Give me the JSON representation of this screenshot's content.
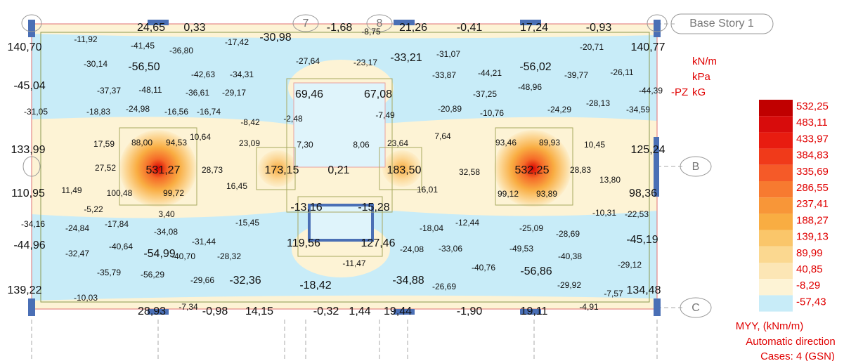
{
  "grid_labels": [
    "7",
    "8",
    "B",
    "C"
  ],
  "story_label": "Base Story 1",
  "units": [
    "kN/m",
    "kPa",
    "-PZ",
    "kG"
  ],
  "labels": [
    "24,65",
    "0,33",
    "-17,42",
    "-30,98",
    "-1,68",
    "-8,75",
    "21,26",
    "-0,41",
    "17,24",
    "-0,93",
    "140,70",
    "-11,92",
    "-41,45",
    "-36,80",
    "-27,64",
    "-23,17",
    "-33,21",
    "-31,07",
    "-20,71",
    "140,77",
    "-30,14",
    "-56,50",
    "-42,63",
    "-34,31",
    "-33,87",
    "-44,21",
    "-56,02",
    "-39,77",
    "-26,11",
    "-45,04",
    "-37,37",
    "-48,11",
    "-36,61",
    "-29,17",
    "69,46",
    "67,08",
    "-37,25",
    "-48,96",
    "-44,39",
    "-31,05",
    "-18,83",
    "-24,98",
    "-16,56",
    "-16,74",
    "-8,42",
    "-2,48",
    "-7,49",
    "-20,89",
    "-10,76",
    "-24,29",
    "-28,13",
    "-34,59",
    "10,64",
    "23,09",
    "7,64",
    "17,59",
    "88,00",
    "94,53",
    "7,30",
    "8,06",
    "23,64",
    "93,46",
    "89,93",
    "10,45",
    "133,99",
    "125,24",
    "27,52",
    "531,27",
    "28,73",
    "173,15",
    "0,21",
    "183,50",
    "32,58",
    "532,25",
    "28,83",
    "13,80",
    "16,45",
    "16,01",
    "110,95",
    "11,49",
    "100,48",
    "99,72",
    "99,12",
    "93,89",
    "98,36",
    "-13,16",
    "-15,28",
    "-5,22",
    "3,40",
    "-10,31",
    "-22,53",
    "-34,16",
    "-24,84",
    "-17,84",
    "-34,08",
    "-15,45",
    "-18,04",
    "-12,44",
    "-25,09",
    "-28,69",
    "-45,19",
    "-44,96",
    "-32,47",
    "-40,64",
    "-54,99",
    "-31,44",
    "-40,70",
    "-28,32",
    "119,56",
    "127,46",
    "-24,08",
    "-33,06",
    "-49,53",
    "-40,38",
    "-11,47",
    "-40,76",
    "-56,86",
    "-29,12",
    "-35,79",
    "-56,29",
    "-29,66",
    "-32,36",
    "-18,42",
    "-34,88",
    "-26,69",
    "-29,92",
    "-7,57",
    "134,48",
    "139,22",
    "-10,03",
    "28,93",
    "-7,34",
    "-0,98",
    "14,15",
    "-0,32",
    "1,44",
    "19,44",
    "-1,90",
    "19,11",
    "-4,91"
  ],
  "legend": [
    {
      "label": "532,25",
      "color": "#c00000"
    },
    {
      "label": "483,11",
      "color": "#d80c0c"
    },
    {
      "label": "433,97",
      "color": "#e81c10"
    },
    {
      "label": "384,83",
      "color": "#f03a1a"
    },
    {
      "label": "335,69",
      "color": "#f55a28"
    },
    {
      "label": "286,55",
      "color": "#f77a30"
    },
    {
      "label": "237,41",
      "color": "#f89638"
    },
    {
      "label": "188,27",
      "color": "#f9ad42"
    },
    {
      "label": "139,13",
      "color": "#fac66a"
    },
    {
      "label": "89,99",
      "color": "#fbd890"
    },
    {
      "label": "40,85",
      "color": "#fce6b5"
    },
    {
      "label": "-8,29",
      "color": "#fdf3d5"
    },
    {
      "label": "-57,43",
      "color": "#c8ecf8"
    }
  ],
  "footer": [
    "MYY, (kNm/m)",
    "Automatic direction",
    "Cases: 4 (GSN)"
  ]
}
